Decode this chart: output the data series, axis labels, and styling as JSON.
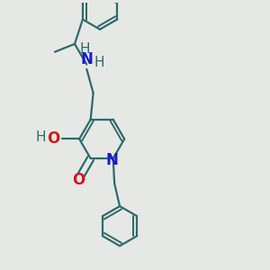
{
  "bg_color": "#e6e8e6",
  "bond_color": "#2d6b6b",
  "n_color": "#1a1acc",
  "o_color": "#cc1a1a",
  "lw": 1.6,
  "fs": 11,
  "fig_size": [
    3.0,
    3.0
  ],
  "dpi": 100,
  "xlim": [
    0.0,
    1.0
  ],
  "ylim": [
    0.0,
    1.0
  ]
}
